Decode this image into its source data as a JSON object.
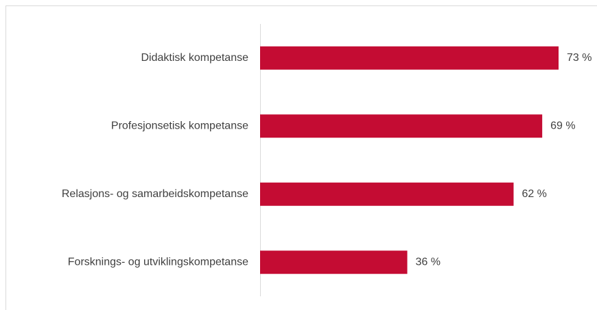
{
  "chart_data": {
    "type": "hbar",
    "categories": [
      "Didaktisk kompetanse",
      "Profesjonsetisk kompetanse",
      "Relasjons- og samarbeidskompetanse",
      "Forsknings- og utviklingskompetanse"
    ],
    "values": [
      73,
      69,
      62,
      36
    ],
    "value_labels": [
      "73 %",
      "69 %",
      "62 %",
      "36 %"
    ],
    "color": "#c40c33"
  }
}
